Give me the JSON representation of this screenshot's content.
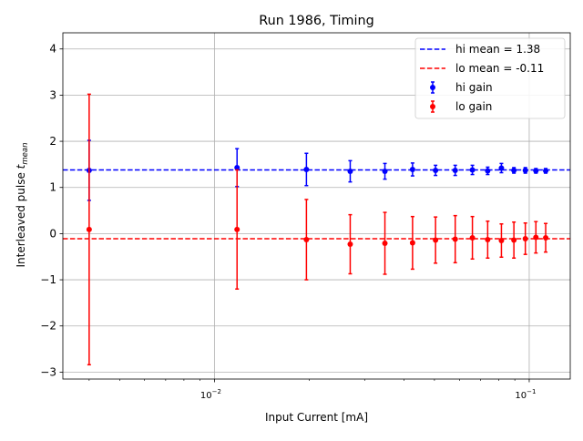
{
  "chart_data": {
    "type": "scatter",
    "title": "Run 1986, Timing",
    "xlabel": "Input Current [mA]",
    "ylabel_main": "Interleaved pulse ",
    "ylabel_var": "t",
    "ylabel_sub": "mean",
    "x_scale": "log",
    "xlim": [
      0.0033,
      0.135
    ],
    "ylim": [
      -3.15,
      4.35
    ],
    "grid": true,
    "legend_position": "top-right",
    "x_ticks": [
      {
        "value": 0.01,
        "base": "10",
        "exp": "−2"
      },
      {
        "value": 0.1,
        "base": "10",
        "exp": "−1"
      }
    ],
    "y_ticks": [
      {
        "value": -3,
        "label": "−3"
      },
      {
        "value": -2,
        "label": "−2"
      },
      {
        "value": -1,
        "label": "−1"
      },
      {
        "value": 0,
        "label": "0"
      },
      {
        "value": 1,
        "label": "1"
      },
      {
        "value": 2,
        "label": "2"
      },
      {
        "value": 3,
        "label": "3"
      },
      {
        "value": 4,
        "label": "4"
      }
    ],
    "series": [
      {
        "name": "hi gain",
        "color": "#0000ff",
        "points": [
          {
            "x": 0.004,
            "y": 1.37,
            "err": 0.65
          },
          {
            "x": 0.0118,
            "y": 1.43,
            "err": 0.41
          },
          {
            "x": 0.0196,
            "y": 1.39,
            "err": 0.35
          },
          {
            "x": 0.027,
            "y": 1.35,
            "err": 0.23
          },
          {
            "x": 0.0348,
            "y": 1.35,
            "err": 0.17
          },
          {
            "x": 0.0426,
            "y": 1.39,
            "err": 0.14
          },
          {
            "x": 0.0504,
            "y": 1.37,
            "err": 0.11
          },
          {
            "x": 0.0582,
            "y": 1.37,
            "err": 0.11
          },
          {
            "x": 0.066,
            "y": 1.38,
            "err": 0.1
          },
          {
            "x": 0.0738,
            "y": 1.36,
            "err": 0.08
          },
          {
            "x": 0.0816,
            "y": 1.42,
            "err": 0.1
          },
          {
            "x": 0.0894,
            "y": 1.37,
            "err": 0.06
          },
          {
            "x": 0.0972,
            "y": 1.37,
            "err": 0.06
          },
          {
            "x": 0.105,
            "y": 1.36,
            "err": 0.05
          },
          {
            "x": 0.1128,
            "y": 1.36,
            "err": 0.05
          }
        ]
      },
      {
        "name": "lo gain",
        "color": "#ff0000",
        "points": [
          {
            "x": 0.004,
            "y": 0.09,
            "err": 2.93
          },
          {
            "x": 0.0118,
            "y": 0.09,
            "err": 1.29
          },
          {
            "x": 0.0196,
            "y": -0.13,
            "err": 0.87
          },
          {
            "x": 0.027,
            "y": -0.23,
            "err": 0.64
          },
          {
            "x": 0.0348,
            "y": -0.21,
            "err": 0.67
          },
          {
            "x": 0.0426,
            "y": -0.2,
            "err": 0.57
          },
          {
            "x": 0.0504,
            "y": -0.14,
            "err": 0.5
          },
          {
            "x": 0.0582,
            "y": -0.12,
            "err": 0.51
          },
          {
            "x": 0.066,
            "y": -0.09,
            "err": 0.46
          },
          {
            "x": 0.0738,
            "y": -0.13,
            "err": 0.4
          },
          {
            "x": 0.0816,
            "y": -0.15,
            "err": 0.36
          },
          {
            "x": 0.0894,
            "y": -0.14,
            "err": 0.39
          },
          {
            "x": 0.0972,
            "y": -0.11,
            "err": 0.34
          },
          {
            "x": 0.105,
            "y": -0.08,
            "err": 0.34
          },
          {
            "x": 0.1128,
            "y": -0.09,
            "err": 0.31
          }
        ]
      }
    ],
    "reference_lines": [
      {
        "name": "hi mean = 1.38",
        "y": 1.38,
        "color": "#0000ff",
        "style": "dashed"
      },
      {
        "name": "lo mean = -0.11",
        "y": -0.11,
        "color": "#ff0000",
        "style": "dashed"
      }
    ]
  }
}
